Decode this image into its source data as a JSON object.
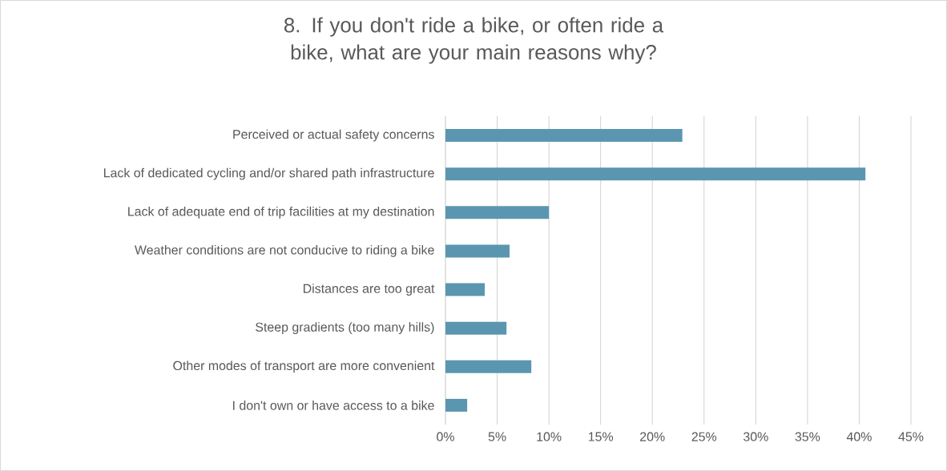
{
  "chart_data": {
    "type": "bar",
    "orientation": "horizontal",
    "title": "8. If you don't ride a bike, or often ride a bike, what are your main reasons why?",
    "categories": [
      "Perceived or actual safety concerns",
      "Lack of dedicated cycling and/or shared path infrastructure",
      "Lack of adequate end of trip facilities at my destination",
      "Weather conditions are not conducive to riding a bike",
      "Distances are too great",
      "Steep gradients (too many hills)",
      "Other modes of transport are more convenient",
      "I don't own or have access to a bike"
    ],
    "values": [
      22.9,
      40.6,
      10.0,
      6.2,
      3.8,
      5.9,
      8.3,
      2.1
    ],
    "color": "#5b96b0",
    "xlim": [
      0,
      45
    ],
    "xticks": [
      {
        "value": 0,
        "label": "0%"
      },
      {
        "value": 5,
        "label": "5%"
      },
      {
        "value": 10,
        "label": "10%"
      },
      {
        "value": 15,
        "label": "15%"
      },
      {
        "value": 20,
        "label": "20%"
      },
      {
        "value": 25,
        "label": "25%"
      },
      {
        "value": 30,
        "label": "30%"
      },
      {
        "value": 35,
        "label": "35%"
      },
      {
        "value": 40,
        "label": "40%"
      },
      {
        "value": 45,
        "label": "45%"
      }
    ],
    "grid": "x"
  }
}
